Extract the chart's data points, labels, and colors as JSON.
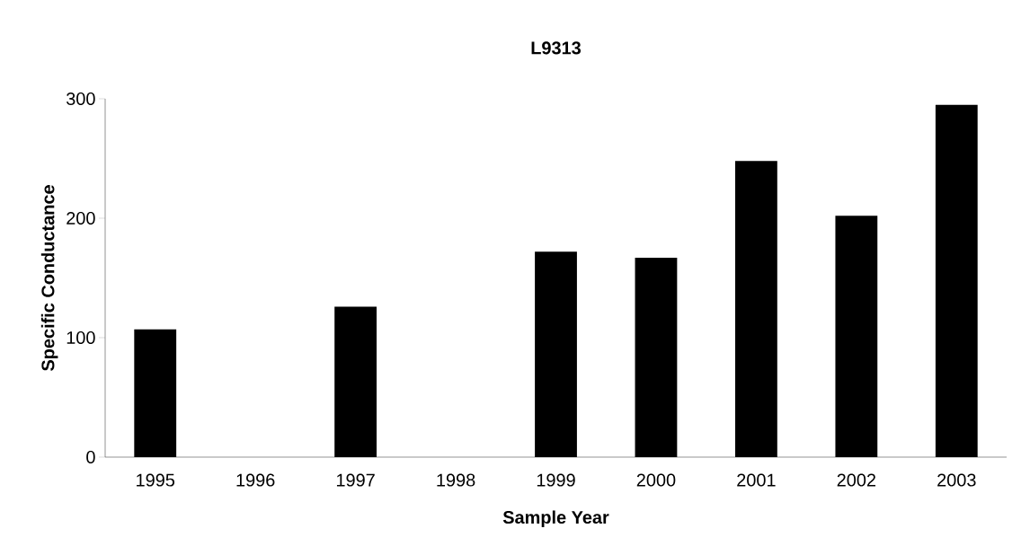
{
  "chart_data": {
    "type": "bar",
    "title": "L9313",
    "xlabel": "Sample Year",
    "ylabel": "Specific Conductance",
    "categories": [
      "1995",
      "1996",
      "1997",
      "1998",
      "1999",
      "2000",
      "2001",
      "2002",
      "2003"
    ],
    "values": [
      107,
      null,
      126,
      null,
      172,
      167,
      248,
      202,
      295
    ],
    "color": "#000000",
    "ylim": [
      0,
      300
    ],
    "yticks": [
      0,
      100,
      200,
      300
    ]
  }
}
